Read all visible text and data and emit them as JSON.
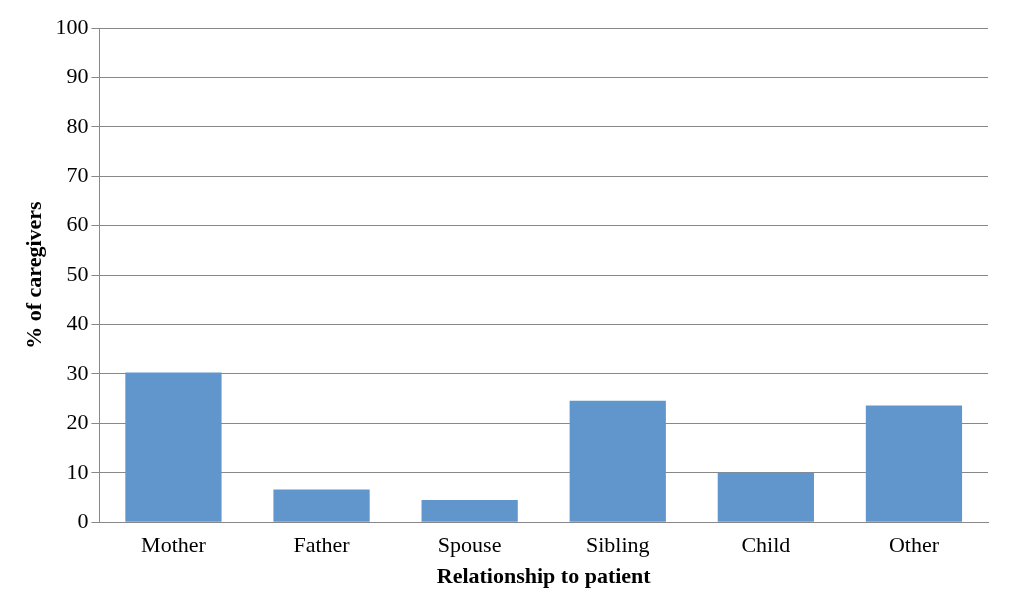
{
  "chart_data": {
    "type": "bar",
    "xlabel": "Relationship to patient",
    "ylabel": "% of caregivers",
    "categories": [
      "Mother",
      "Father",
      "Spouse",
      "Sibling",
      "Child",
      "Other"
    ],
    "values": [
      30.3,
      6.6,
      4.5,
      24.6,
      10.0,
      23.6
    ],
    "color": "#6096cc",
    "ylim": [
      0,
      100
    ],
    "yticks": [
      0,
      10,
      20,
      30,
      40,
      50,
      60,
      70,
      80,
      90,
      100
    ],
    "grid": "y",
    "legend": false
  }
}
